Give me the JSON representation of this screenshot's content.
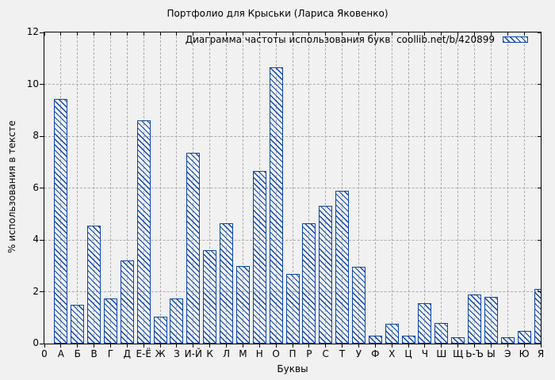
{
  "legend": {
    "label": "Диаграмма частоты использования букв  coollib.net/b/420899"
  },
  "colors": {
    "bar": "#0d47a8",
    "background": "#f1f1f1",
    "grid": "#ababab",
    "text": "#000000"
  },
  "chart_data": {
    "type": "bar",
    "title": "Портфолио для Крыськи (Лариса Яковенко)",
    "xlabel": "Буквы",
    "ylabel": "% использования в тексте",
    "ylim": [
      0,
      12
    ],
    "yticks": [
      0,
      2,
      4,
      6,
      8,
      10,
      12
    ],
    "grid": true,
    "legend_position": "top-right-inside",
    "hatch": "diagonal-backslash",
    "categories": [
      "0",
      "А",
      "Б",
      "В",
      "Г",
      "Д",
      "Е-Ё",
      "Ж",
      "З",
      "И-Й",
      "К",
      "Л",
      "М",
      "Н",
      "О",
      "П",
      "Р",
      "С",
      "Т",
      "У",
      "Ф",
      "Х",
      "Ц",
      "Ч",
      "Ш",
      "Щ",
      "Ь-Ъ",
      "Ы",
      "Э",
      "Ю",
      "Я"
    ],
    "values": [
      0,
      9.45,
      1.5,
      4.55,
      1.75,
      3.2,
      8.6,
      1.05,
      1.75,
      7.35,
      3.6,
      4.65,
      3.0,
      6.65,
      10.65,
      2.7,
      4.65,
      5.3,
      5.9,
      2.95,
      0.3,
      0.75,
      0.3,
      1.55,
      0.8,
      0.25,
      1.9,
      1.8,
      0.25,
      0.5,
      2.1
    ]
  }
}
